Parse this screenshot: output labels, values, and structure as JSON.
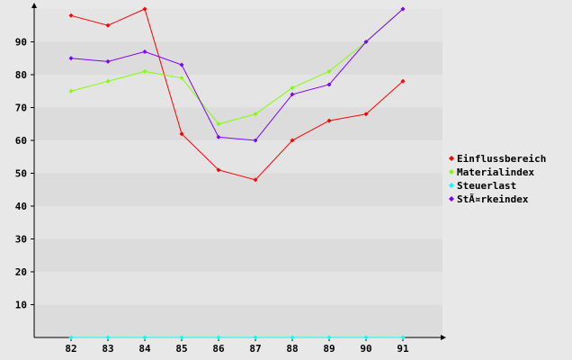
{
  "chart_data": {
    "type": "line",
    "title": "",
    "xlabel": "",
    "ylabel": "",
    "categories": [
      "82",
      "83",
      "84",
      "85",
      "86",
      "87",
      "88",
      "89",
      "90",
      "91"
    ],
    "y_ticks": [
      10,
      20,
      30,
      40,
      50,
      60,
      70,
      80,
      90
    ],
    "ylim": [
      0,
      100
    ],
    "grid": "horizontal alternating bands",
    "legend_position": "right",
    "series": [
      {
        "name": "Einflussbereich",
        "color": "#ff0000",
        "values": [
          98,
          95,
          100,
          62,
          51,
          48,
          60,
          66,
          68,
          78
        ]
      },
      {
        "name": "Materialindex",
        "color": "#80ff00",
        "values": [
          75,
          78,
          81,
          79,
          65,
          68,
          76,
          81,
          90,
          100
        ]
      },
      {
        "name": "Steuerlast",
        "color": "#00ffff",
        "values": [
          0,
          0,
          0,
          0,
          0,
          0,
          0,
          0,
          0,
          0
        ]
      },
      {
        "name": "StÃ¤rkeindex",
        "color": "#8000ff",
        "values": [
          85,
          84,
          87,
          83,
          61,
          60,
          74,
          77,
          90,
          100
        ]
      }
    ]
  }
}
